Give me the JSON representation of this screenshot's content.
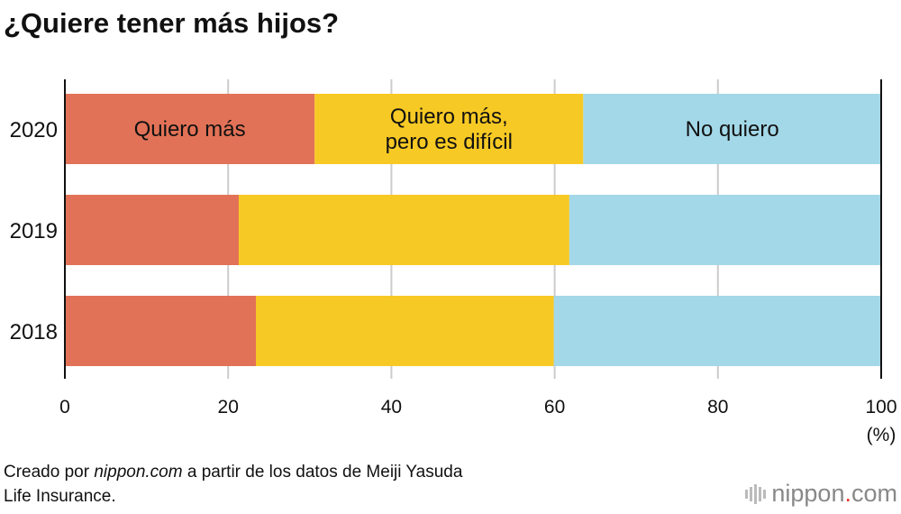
{
  "title": "¿Quiere tener más hijos?",
  "source": {
    "prefix": "Creado por ",
    "site": "nippon.com",
    "suffix": " a partir de los datos de Meiji Yasuda",
    "line2": "Life Insurance."
  },
  "logo": {
    "name": "nippon",
    "dot": ".",
    "tld": "com"
  },
  "chart_data": {
    "type": "bar",
    "orientation": "horizontal-stacked",
    "title": "¿Quiere tener más hijos?",
    "categories": [
      "2020",
      "2019",
      "2018"
    ],
    "series": [
      {
        "name": "Quiero más",
        "label_lines": [
          "Quiero más"
        ],
        "color": "#E27257",
        "values": [
          30.6,
          21.3,
          23.4
        ]
      },
      {
        "name": "Quiero más, pero es difícil",
        "label_lines": [
          "Quiero más,",
          "pero es difícil"
        ],
        "color": "#F7C924",
        "values": [
          32.9,
          40.5,
          36.5
        ]
      },
      {
        "name": "No quiero",
        "label_lines": [
          "No quiero"
        ],
        "color": "#A3D8E8",
        "values": [
          36.5,
          38.2,
          40.1
        ]
      }
    ],
    "xlim": [
      0,
      100
    ],
    "xticks": [
      0,
      20,
      40,
      60,
      80,
      100
    ],
    "xunit": "(%)",
    "grid": true
  }
}
